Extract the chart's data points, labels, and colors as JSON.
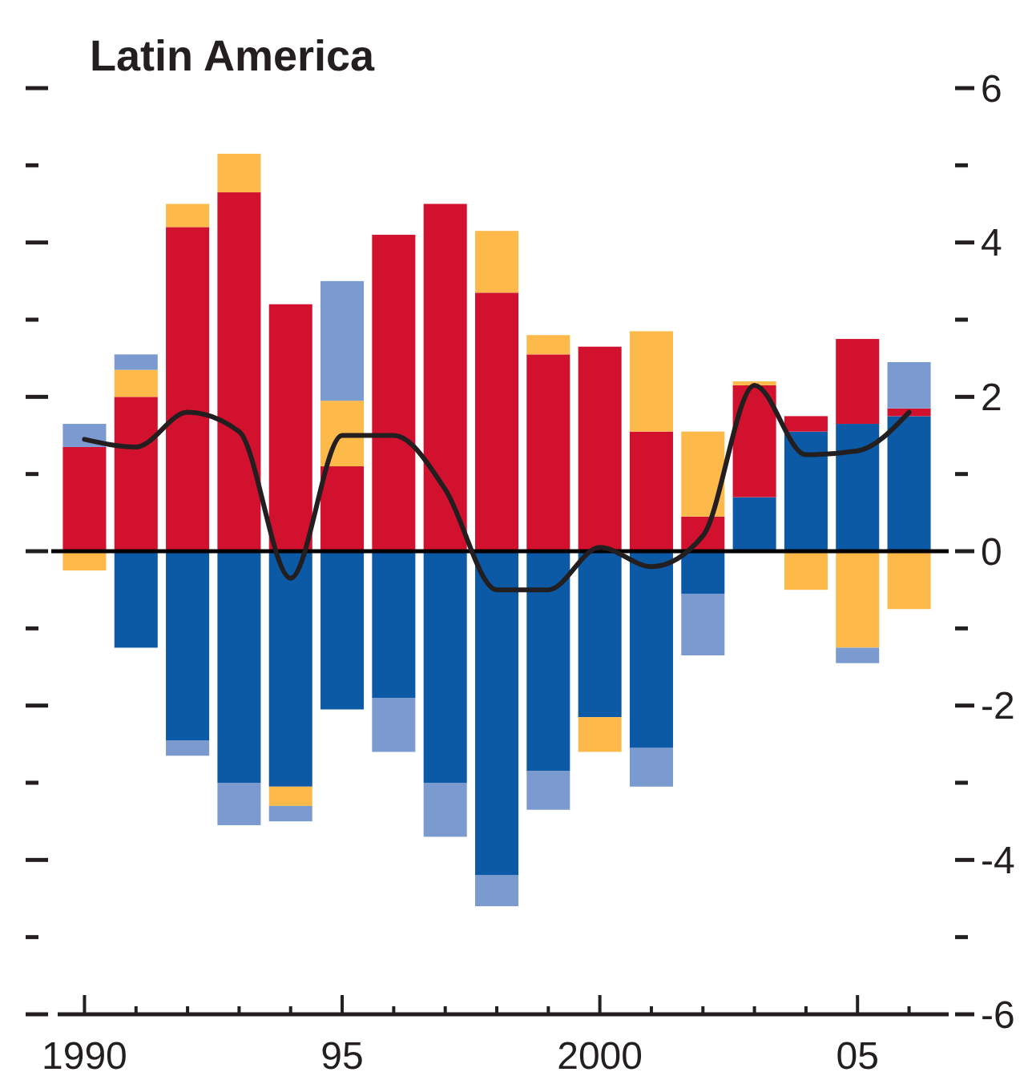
{
  "chart_data": {
    "type": "bar",
    "title": "Latin America",
    "stacked": true,
    "categories": [
      "1990",
      null,
      null,
      null,
      null,
      "95",
      null,
      null,
      null,
      null,
      "2000",
      null,
      null,
      null,
      null,
      "05",
      null
    ],
    "series": [
      {
        "color": "#0c5aa6",
        "values": [
          null,
          -1.25,
          -2.45,
          -3,
          -3.05,
          -2.05,
          -1.9,
          -3,
          -4.2,
          -2.85,
          -2.15,
          -2.55,
          -0.55,
          0.7,
          1.55,
          1.65,
          1.75
        ]
      },
      {
        "color": "#d2112e",
        "values": [
          1.35,
          2,
          4.2,
          4.65,
          3.2,
          1.1,
          4.1,
          4.5,
          3.35,
          2.55,
          2.65,
          1.55,
          0.45,
          1.45,
          0.2,
          1.1,
          0.1
        ]
      },
      {
        "color": "#fdb94a",
        "values": [
          -0.25,
          0.35,
          0.3,
          0.5,
          -0.25,
          0.85,
          null,
          null,
          0.8,
          0.25,
          -0.45,
          1.3,
          1.1,
          0.05,
          -0.5,
          -1.25,
          -0.75
        ]
      },
      {
        "color": "#7b9ad0",
        "values": [
          0.3,
          0.2,
          -0.2,
          -0.55,
          -0.2,
          1.55,
          -0.7,
          -0.7,
          -0.4,
          -0.5,
          null,
          -0.5,
          -0.8,
          null,
          null,
          -0.2,
          0.6
        ]
      },
      {
        "type": "line",
        "color": "#231f20",
        "values": [
          1.45,
          1.35,
          1.8,
          1.55,
          -0.35,
          1.5,
          1.5,
          0.8,
          -0.5,
          -0.5,
          0.05,
          -0.2,
          0.2,
          2.15,
          1.25,
          1.3,
          1.8
        ]
      }
    ],
    "ylim": [
      -6,
      6
    ],
    "yticks": [
      -6,
      {
        "value": -5,
        "label": null
      },
      -4,
      {
        "value": -3,
        "label": null
      },
      -2,
      {
        "value": -1,
        "label": null
      },
      0,
      {
        "value": 1,
        "label": null
      },
      2,
      {
        "value": 3,
        "label": null
      },
      4,
      {
        "value": 5,
        "label": null
      },
      6
    ],
    "ref_lines": [
      {
        "axis": "y",
        "value": 0,
        "color": "#000000"
      }
    ]
  }
}
